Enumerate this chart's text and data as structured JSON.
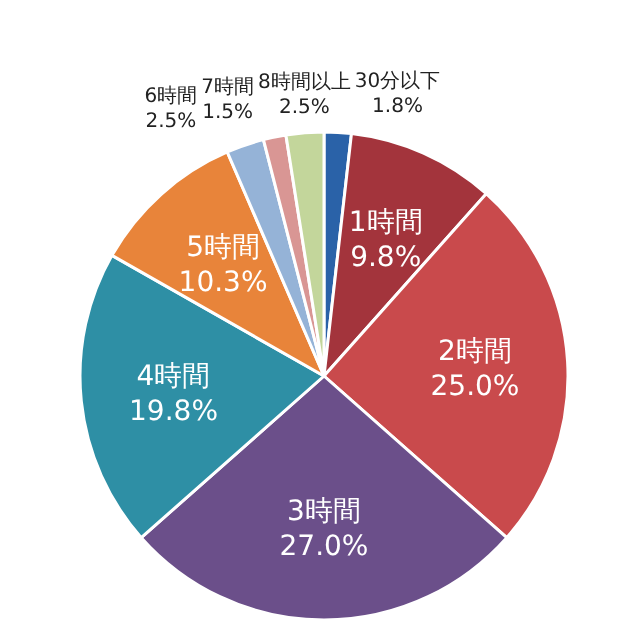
{
  "chart_data": {
    "type": "pie",
    "categories": [
      "30分以下",
      "1時間",
      "2時間",
      "3時間",
      "4時間",
      "5時間",
      "6時間",
      "7時間",
      "8時間以上"
    ],
    "values": [
      1.8,
      9.8,
      25.0,
      27.0,
      19.8,
      10.3,
      2.5,
      1.5,
      2.5
    ],
    "colors": [
      "#2a62a8",
      "#a3343c",
      "#c94a4c",
      "#6b4f8a",
      "#2e8fa5",
      "#e8843a",
      "#95b3d7",
      "#d99694",
      "#c3d69b"
    ],
    "value_labels": [
      "1.8%",
      "9.8%",
      "25.0%",
      "27.0%",
      "19.8%",
      "10.3%",
      "2.5%",
      "1.5%",
      "2.5%"
    ]
  }
}
